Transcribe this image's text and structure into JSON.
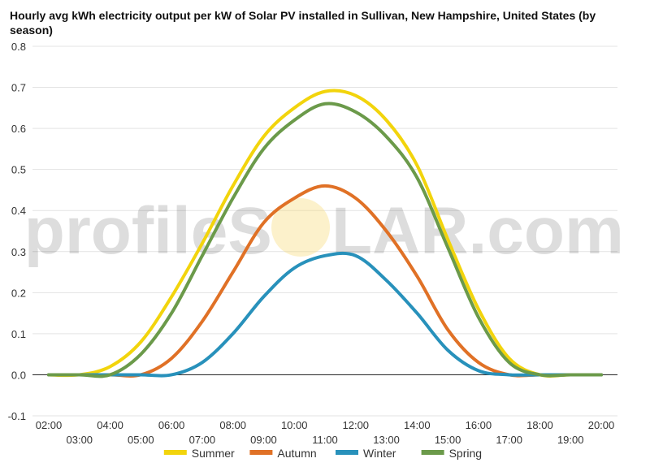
{
  "chart_data": {
    "type": "line",
    "title": "Hourly avg kWh electricity output per kW of Solar PV installed in Sullivan, New Hampshire, United States (by season)",
    "x": [
      "02:00",
      "03:00",
      "04:00",
      "05:00",
      "06:00",
      "07:00",
      "08:00",
      "09:00",
      "10:00",
      "11:00",
      "12:00",
      "13:00",
      "14:00",
      "15:00",
      "16:00",
      "17:00",
      "18:00",
      "19:00",
      "20:00"
    ],
    "ylim": [
      -0.1,
      0.8
    ],
    "yticks": [
      "-0.1",
      "0.0",
      "0.1",
      "0.2",
      "0.3",
      "0.4",
      "0.5",
      "0.6",
      "0.7",
      "0.8"
    ],
    "grid": true,
    "legend_position": "bottom",
    "series": [
      {
        "name": "Summer",
        "color": "#f2d40c",
        "values": [
          0,
          0,
          0.02,
          0.08,
          0.19,
          0.32,
          0.46,
          0.58,
          0.65,
          0.69,
          0.68,
          0.62,
          0.51,
          0.33,
          0.16,
          0.04,
          0,
          0,
          0
        ]
      },
      {
        "name": "Autumn",
        "color": "#e07126",
        "values": [
          0,
          0,
          0,
          0,
          0.04,
          0.13,
          0.25,
          0.37,
          0.43,
          0.46,
          0.43,
          0.35,
          0.24,
          0.11,
          0.03,
          0,
          0,
          0,
          0
        ]
      },
      {
        "name": "Winter",
        "color": "#2891bb",
        "values": [
          0,
          0,
          0,
          0,
          0,
          0.03,
          0.1,
          0.19,
          0.26,
          0.29,
          0.29,
          0.23,
          0.15,
          0.06,
          0.01,
          0,
          0,
          0,
          0
        ]
      },
      {
        "name": "Spring",
        "color": "#6b9a4a",
        "values": [
          0,
          0,
          0,
          0.05,
          0.15,
          0.29,
          0.43,
          0.55,
          0.62,
          0.66,
          0.64,
          0.58,
          0.48,
          0.31,
          0.14,
          0.03,
          0,
          0,
          0
        ]
      }
    ]
  },
  "watermark": {
    "text_left": "profileS",
    "text_right": "LAR.com",
    "sun_color": "#f5d76a"
  }
}
